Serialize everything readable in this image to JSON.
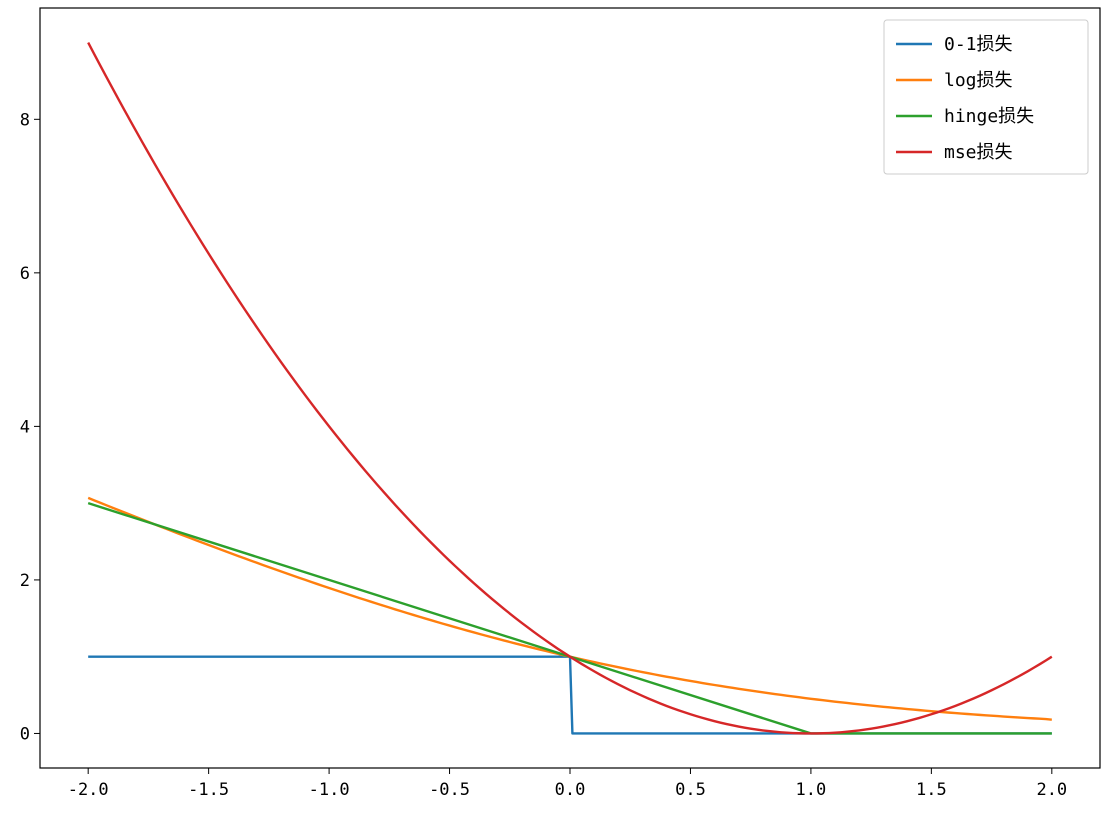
{
  "chart_data": {
    "type": "line",
    "title": "",
    "xlabel": "",
    "ylabel": "",
    "xlim": [
      -2.2,
      2.2
    ],
    "ylim": [
      -0.45,
      9.45
    ],
    "xticks": [
      -2.0,
      -1.5,
      -1.0,
      -0.5,
      0.0,
      0.5,
      1.0,
      1.5,
      2.0
    ],
    "xtick_labels": [
      "-2.0",
      "-1.5",
      "-1.0",
      "-0.5",
      "0.0",
      "0.5",
      "1.0",
      "1.5",
      "2.0"
    ],
    "yticks": [
      0,
      2,
      4,
      6,
      8
    ],
    "ytick_labels": [
      "0",
      "2",
      "4",
      "6",
      "8"
    ],
    "grid": false,
    "legend_position": "top-right",
    "series": [
      {
        "name": "0-1损失",
        "color": "#1f77b4",
        "x": [
          -2.0,
          0.0,
          0.0,
          0.01,
          2.0
        ],
        "y": [
          1,
          1,
          1,
          0,
          0
        ]
      },
      {
        "name": "log损失",
        "color": "#ff7f0e",
        "x": [
          -2.0,
          -1.75,
          -1.5,
          -1.25,
          -1.0,
          -0.75,
          -0.5,
          -0.25,
          0.0,
          0.25,
          0.5,
          0.75,
          1.0,
          1.25,
          1.5,
          1.75,
          2.0
        ],
        "y": [
          3.07,
          2.8,
          2.54,
          2.28,
          2.03,
          1.79,
          1.56,
          1.34,
          1.0,
          0.83,
          0.68,
          0.55,
          0.45,
          0.36,
          0.29,
          0.23,
          0.18
        ]
      },
      {
        "name": "hinge损失",
        "color": "#2ca02c",
        "x": [
          -2.0,
          1.0,
          2.0
        ],
        "y": [
          3.0,
          0.0,
          0.0
        ]
      },
      {
        "name": "mse损失",
        "color": "#d62728",
        "x": [
          -2.0,
          -1.75,
          -1.5,
          -1.25,
          -1.0,
          -0.75,
          -0.5,
          -0.25,
          0.0,
          0.25,
          0.5,
          0.75,
          1.0,
          1.25,
          1.5,
          1.75,
          2.0
        ],
        "y": [
          9.0,
          7.5625,
          6.25,
          5.0625,
          4.0,
          3.0625,
          2.25,
          1.5625,
          1.0,
          0.5625,
          0.25,
          0.0625,
          0.0,
          0.0625,
          0.25,
          0.5625,
          1.0
        ]
      }
    ]
  }
}
